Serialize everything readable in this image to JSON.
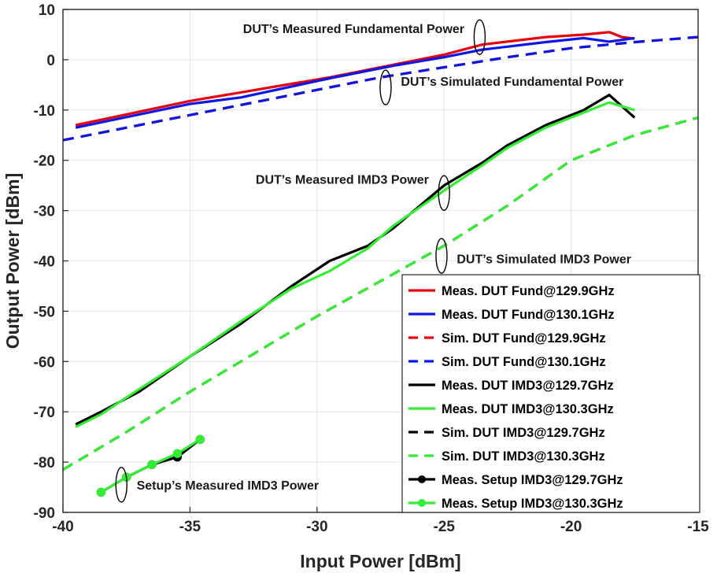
{
  "chart_data": {
    "type": "line",
    "xlabel": "Input Power [dBm]",
    "ylabel": "Output Power [dBm]",
    "xlim": [
      -40,
      -15
    ],
    "ylim": [
      -90,
      10
    ],
    "xticks": [
      -40,
      -35,
      -30,
      -25,
      -20,
      -15
    ],
    "yticks": [
      10,
      0,
      -10,
      -20,
      -30,
      -40,
      -50,
      -60,
      -70,
      -80,
      -90
    ],
    "grid": true,
    "legend_position": "bottom-right",
    "series": [
      {
        "name": "Meas. DUT Fund@129.9GHz",
        "color": "#e8000b",
        "style": "solid",
        "marker": "none",
        "x": [
          -39.5,
          -35,
          -33,
          -29.5,
          -27,
          -25,
          -23.5,
          -21,
          -19.5,
          -18.5,
          -18,
          -17.5
        ],
        "y": [
          -13,
          -8.2,
          -6.5,
          -3.5,
          -1,
          1,
          3,
          4.5,
          5,
          5.5,
          4.5,
          4.2
        ]
      },
      {
        "name": "Meas. DUT Fund@130.1GHz",
        "color": "#0b16e8",
        "style": "solid",
        "marker": "none",
        "x": [
          -39.5,
          -35,
          -33,
          -29.5,
          -27,
          -25,
          -23.5,
          -21,
          -19.5,
          -18.5,
          -17.5
        ],
        "y": [
          -13.5,
          -8.8,
          -7.5,
          -3.7,
          -1.2,
          0.5,
          2,
          3.5,
          4.3,
          3.6,
          4.3
        ]
      },
      {
        "name": "Sim. DUT Fund@129.9GHz",
        "color": "#e8000b",
        "style": "dashed",
        "marker": "none",
        "x": [
          -40,
          -37.5,
          -35,
          -32.5,
          -30,
          -27.5,
          -25,
          -22.5,
          -20,
          -17.5,
          -15
        ],
        "y": [
          -16,
          -13.5,
          -11,
          -8.5,
          -6,
          -3.5,
          -1.5,
          0.5,
          2.3,
          3.5,
          4.5
        ]
      },
      {
        "name": "Sim. DUT Fund@130.1GHz",
        "color": "#0b16e8",
        "style": "dashed",
        "marker": "none",
        "x": [
          -40,
          -37.5,
          -35,
          -32.5,
          -30,
          -27.5,
          -25,
          -22.5,
          -20,
          -17.5,
          -15
        ],
        "y": [
          -16,
          -13.5,
          -11,
          -8.5,
          -6,
          -3.5,
          -1.5,
          0.5,
          2.3,
          3.5,
          4.5
        ]
      },
      {
        "name": "Meas. DUT IMD3@129.7GHz",
        "color": "#000000",
        "style": "solid",
        "marker": "none",
        "x": [
          -39.5,
          -38.5,
          -37,
          -35,
          -33,
          -31,
          -29.5,
          -28,
          -27,
          -25,
          -23.5,
          -22.5,
          -21,
          -19.5,
          -18.5,
          -17.5
        ],
        "y": [
          -72.5,
          -70,
          -66,
          -59,
          -52.5,
          -45,
          -40,
          -37,
          -33.5,
          -25,
          -20.5,
          -17,
          -13,
          -10,
          -7,
          -11.5
        ]
      },
      {
        "name": "Meas. DUT IMD3@130.3GHz",
        "color": "#33ee33",
        "style": "solid",
        "marker": "none",
        "x": [
          -39.5,
          -38.5,
          -37,
          -35,
          -33,
          -31,
          -29.5,
          -28,
          -27,
          -25,
          -23.5,
          -22.5,
          -21,
          -19.5,
          -18.5,
          -17.5
        ],
        "y": [
          -73,
          -70.5,
          -65.5,
          -59,
          -52,
          -45.5,
          -42,
          -37.5,
          -33,
          -26,
          -21,
          -17.5,
          -13.5,
          -10.5,
          -8.5,
          -10
        ]
      },
      {
        "name": "Sim. DUT IMD3@129.7GHz",
        "color": "#000000",
        "style": "dashed",
        "marker": "none",
        "x": [
          -40,
          -37.5,
          -35,
          -32.5,
          -30,
          -27.5,
          -25,
          -22.5,
          -20,
          -17.5,
          -15
        ],
        "y": [
          -81.5,
          -74,
          -66,
          -58.5,
          -51,
          -44,
          -37,
          -29,
          -20,
          -15,
          -11.5
        ]
      },
      {
        "name": "Sim. DUT IMD3@130.3GHz",
        "color": "#33ee33",
        "style": "dashed",
        "marker": "none",
        "x": [
          -40,
          -37.5,
          -35,
          -32.5,
          -30,
          -27.5,
          -25,
          -22.5,
          -20,
          -17.5,
          -15
        ],
        "y": [
          -81.5,
          -74,
          -66,
          -58.5,
          -51,
          -44,
          -37,
          -29,
          -20,
          -15,
          -11.5
        ]
      },
      {
        "name": "Meas. Setup IMD3@129.7GHz",
        "color": "#000000",
        "style": "solid",
        "marker": "circle",
        "x": [
          -38.5,
          -37.5,
          -36.5,
          -35.5,
          -34.6
        ],
        "y": [
          -86,
          -83,
          -80.5,
          -79,
          -75.5
        ]
      },
      {
        "name": "Meas. Setup IMD3@130.3GHz",
        "color": "#33ee33",
        "style": "solid",
        "marker": "circle",
        "x": [
          -38.5,
          -37.5,
          -36.5,
          -35.5,
          -34.6
        ],
        "y": [
          -86,
          -83,
          -80.5,
          -78.3,
          -75.5
        ]
      }
    ],
    "annotations": [
      {
        "text": "DUT’s Measured Fundamental Power",
        "x": -24.2,
        "y": 5.3,
        "anchor": "end",
        "ellipse_x": -23.6,
        "ellipse_y": 4.5
      },
      {
        "text": "DUT’s Simulated Fundamental Power",
        "x": -26.7,
        "y": -5.2,
        "anchor": "start",
        "ellipse_x": -27.3,
        "ellipse_y": -5.5
      },
      {
        "text": "DUT’s Measured IMD3 Power",
        "x": -25.6,
        "y": -24.7,
        "anchor": "end",
        "ellipse_x": -25.0,
        "ellipse_y": -26.5
      },
      {
        "text": "DUT’s Simulated IMD3 Power",
        "x": -24.5,
        "y": -40.5,
        "anchor": "start",
        "ellipse_x": -25.1,
        "ellipse_y": -39.0
      },
      {
        "text": "Setup’s Measured IMD3 Power",
        "x": -37.1,
        "y": -85.5,
        "anchor": "start",
        "ellipse_x": -37.7,
        "ellipse_y": -84.5
      }
    ]
  }
}
